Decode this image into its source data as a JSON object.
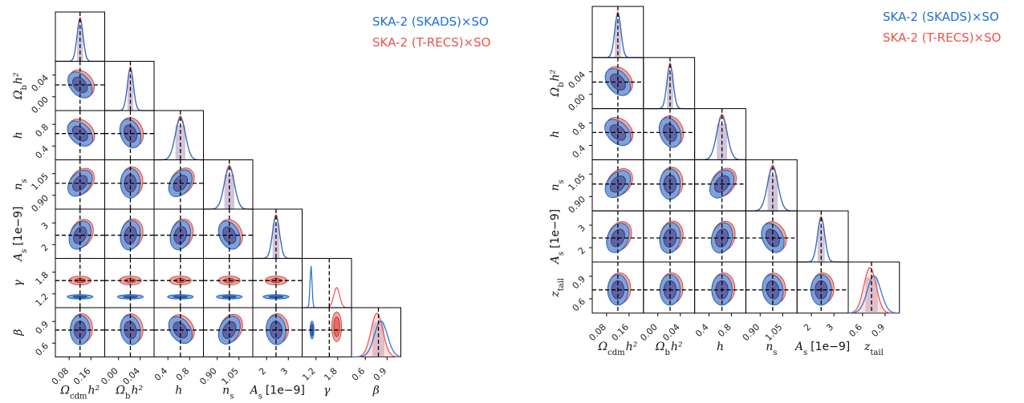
{
  "legend": {
    "entries": [
      {
        "label": "SKA-2 (SKADS)×SO",
        "color": "#1f6fd0"
      },
      {
        "label": "SKA-2 (T-RECS)×SO",
        "color": "#e8534a"
      }
    ]
  },
  "colors": {
    "blue_fill": "#3f79c9",
    "blue_outer": "#6fa0e0",
    "blue_inner": "#3360ad",
    "red_fill": "#e8605a",
    "red_outer": "#f09a95",
    "red_inner": "#9a7aa8",
    "overlap": "#5a5aa0"
  },
  "chart_data": [
    {
      "type": "corner",
      "params": [
        {
          "name": "Ωcdm h²",
          "label_tex": "Ω_cdm h²",
          "range": [
            0.05,
            0.19
          ],
          "ticks": [
            "0.08",
            "0.16"
          ],
          "fiducial": 0.12
        },
        {
          "name": "Ωb h²",
          "label_tex": "Ω_b h²",
          "range": [
            -0.03,
            0.07
          ],
          "ticks": [
            "0.00",
            "0.04"
          ],
          "fiducial": 0.022
        },
        {
          "name": "h",
          "label_tex": "h",
          "range": [
            0.35,
            0.95
          ],
          "ticks": [
            "0.4",
            "0.8"
          ],
          "fiducial": 0.67
        },
        {
          "name": "ns",
          "label_tex": "n_s",
          "range": [
            0.86,
            1.06
          ],
          "ticks": [
            "0.90",
            "1.05"
          ],
          "fiducial": 0.965
        },
        {
          "name": "As [1e-9]",
          "label_tex": "A_s [1e-9]",
          "range": [
            1.3,
            3.0
          ],
          "ticks": [
            "2",
            "3"
          ],
          "fiducial": 2.1
        },
        {
          "name": "γ",
          "label_tex": "γ",
          "range": [
            0.9,
            1.9
          ],
          "ticks": [
            "1.2",
            "1.8"
          ],
          "fiducial": 1.45
        },
        {
          "name": "β",
          "label_tex": "β",
          "range": [
            0.45,
            1.0
          ],
          "ticks": [
            "0.6",
            "0.9"
          ],
          "fiducial": 0.75
        }
      ],
      "axis_tick_labels_y": {
        "Ωb h²": [
          "0.00",
          "0.04"
        ],
        "h": [
          "0.4",
          "0.8"
        ],
        "ns": [
          "0.90",
          "1.05"
        ],
        "As [1e-9]": [
          "2",
          "3"
        ],
        "γ": [
          "1.2",
          "1.8"
        ],
        "β": [
          "0.6",
          "0.9"
        ]
      },
      "x_axis_labels": [
        "Ωcdm h²",
        "Ωb h²",
        "h",
        "ns",
        "As [1e-9]",
        "γ",
        "β"
      ]
    },
    {
      "type": "corner",
      "params": [
        {
          "name": "Ωcdm h²",
          "label_tex": "Ω_cdm h²",
          "range": [
            0.05,
            0.19
          ],
          "ticks": [
            "0.08",
            "0.16"
          ],
          "fiducial": 0.12
        },
        {
          "name": "Ωb h²",
          "label_tex": "Ω_b h²",
          "range": [
            -0.03,
            0.07
          ],
          "ticks": [
            "0.00",
            "0.04"
          ],
          "fiducial": 0.022
        },
        {
          "name": "h",
          "label_tex": "h",
          "range": [
            0.35,
            0.95
          ],
          "ticks": [
            "0.4",
            "0.8"
          ],
          "fiducial": 0.67
        },
        {
          "name": "ns",
          "label_tex": "n_s",
          "range": [
            0.86,
            1.06
          ],
          "ticks": [
            "0.90",
            "1.05"
          ],
          "fiducial": 0.965
        },
        {
          "name": "As [1e-9]",
          "label_tex": "A_s [1e-9]",
          "range": [
            1.3,
            3.0
          ],
          "ticks": [
            "2",
            "3"
          ],
          "fiducial": 2.1
        },
        {
          "name": "z_tail",
          "label_tex": "z_tail",
          "range": [
            0.45,
            1.0
          ],
          "ticks": [
            "0.6",
            "0.9"
          ],
          "fiducial": 0.7
        }
      ],
      "x_axis_labels": [
        "Ωcdm h²",
        "Ωb h²",
        "h",
        "ns",
        "As [1e-9]",
        "z_tail"
      ]
    }
  ],
  "axis_text": {
    "cdm": "Ω",
    "cdm_sub": "cdm",
    "cdm_tail": "h²",
    "b": "Ω",
    "b_sub": "b",
    "b_tail": "h²",
    "h": "h",
    "ns": "n",
    "ns_sub": "s",
    "As": "A",
    "As_sub": "s",
    "As_unit": "[1e−9]",
    "gamma": "γ",
    "beta": "β",
    "ztail": "z",
    "ztail_sub": "tail"
  }
}
